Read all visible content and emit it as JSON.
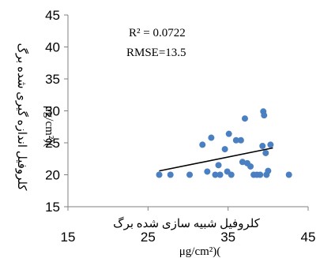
{
  "chart_data": {
    "type": "scatter",
    "xlabel": "کلروفیل شبیه سازی شده برگ",
    "xunit": "μg/cm²)(",
    "ylabel": "کلروفیل اندازه گیری شده برگ",
    "yunit": "μg/cm²)(",
    "xlim": [
      15,
      45
    ],
    "ylim": [
      15,
      45
    ],
    "xticks": [
      "15",
      "25",
      "35",
      "45"
    ],
    "yticks": [
      "15",
      "20",
      "25",
      "30",
      "35",
      "40",
      "45"
    ],
    "grid": false,
    "legend": "none",
    "annotations": {
      "r2": "R² = 0.0722",
      "rmse": "RMSE=13.5"
    },
    "colors": {
      "point": "#4a7fc1",
      "trendline": "#000000",
      "axis": "#808080"
    },
    "points": [
      [
        26.4,
        20.0
      ],
      [
        27.8,
        20.0
      ],
      [
        30.2,
        20.0
      ],
      [
        31.8,
        24.7
      ],
      [
        32.4,
        20.5
      ],
      [
        32.9,
        25.8
      ],
      [
        33.4,
        20.0
      ],
      [
        33.8,
        21.5
      ],
      [
        34.0,
        20.0
      ],
      [
        34.6,
        24.0
      ],
      [
        34.9,
        20.5
      ],
      [
        35.1,
        26.4
      ],
      [
        35.4,
        20.0
      ],
      [
        36.0,
        25.4
      ],
      [
        36.6,
        25.4
      ],
      [
        36.8,
        22.0
      ],
      [
        37.1,
        28.8
      ],
      [
        37.4,
        21.8
      ],
      [
        37.8,
        21.3
      ],
      [
        38.2,
        20.0
      ],
      [
        38.6,
        20.0
      ],
      [
        39.0,
        20.0
      ],
      [
        39.3,
        24.5
      ],
      [
        39.4,
        29.9
      ],
      [
        39.5,
        29.3
      ],
      [
        39.7,
        23.4
      ],
      [
        39.8,
        20.0
      ],
      [
        40.0,
        20.6
      ],
      [
        40.3,
        24.7
      ],
      [
        42.6,
        20.0
      ]
    ],
    "trendline": [
      [
        26.4,
        20.6
      ],
      [
        40.6,
        24.2
      ]
    ]
  }
}
